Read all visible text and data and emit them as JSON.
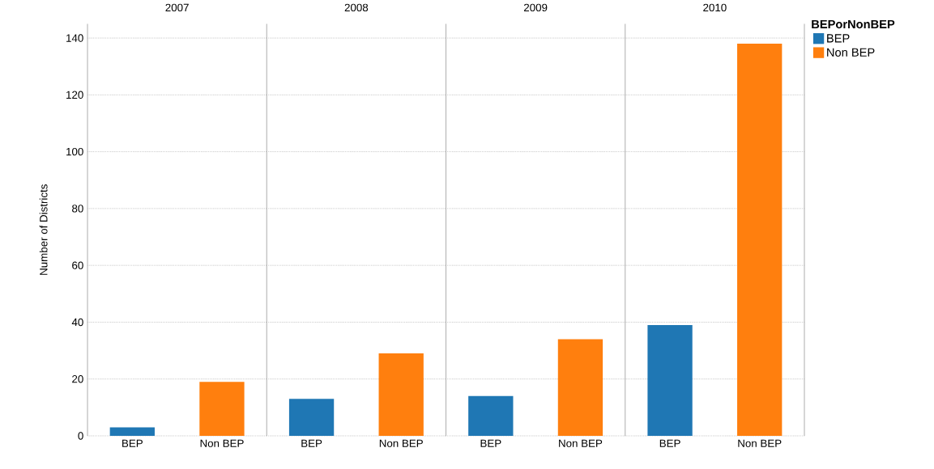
{
  "chart_data": [
    {
      "type": "bar",
      "title": "2007",
      "ylabel": "Number of Districts",
      "categories": [
        "BEP",
        "Non BEP"
      ],
      "series": [
        {
          "color": "#1f77b4",
          "values": [
            3,
            null
          ]
        },
        {
          "color": "#ff7f0e",
          "values": [
            null,
            19
          ]
        }
      ],
      "ylim": [
        0,
        145
      ],
      "yticks": [
        0,
        20,
        40,
        60,
        80,
        100,
        120,
        140
      ],
      "grid": "y"
    },
    {
      "type": "bar",
      "title": "2008",
      "categories": [
        "BEP",
        "Non BEP"
      ],
      "series": [
        {
          "color": "#1f77b4",
          "values": [
            13,
            null
          ]
        },
        {
          "color": "#ff7f0e",
          "values": [
            null,
            29
          ]
        }
      ],
      "ylim": [
        0,
        145
      ],
      "yticks": [
        0,
        20,
        40,
        60,
        80,
        100,
        120,
        140
      ],
      "grid": "y",
      "tick_labels": "x"
    },
    {
      "type": "bar",
      "title": "2009",
      "categories": [
        "BEP",
        "Non BEP"
      ],
      "series": [
        {
          "color": "#1f77b4",
          "values": [
            14,
            null
          ]
        },
        {
          "color": "#ff7f0e",
          "values": [
            null,
            34
          ]
        }
      ],
      "ylim": [
        0,
        145
      ],
      "yticks": [
        0,
        20,
        40,
        60,
        80,
        100,
        120,
        140
      ],
      "grid": "y",
      "tick_labels": "x"
    },
    {
      "type": "bar",
      "title": "2010",
      "categories": [
        "BEP",
        "Non BEP"
      ],
      "series": [
        {
          "name": "BEP",
          "color": "#1f77b4",
          "values": [
            39,
            null
          ]
        },
        {
          "name": "Non BEP",
          "color": "#ff7f0e",
          "values": [
            null,
            138
          ]
        }
      ],
      "ylim": [
        0,
        145
      ],
      "yticks": [
        0,
        20,
        40,
        60,
        80,
        100,
        120,
        140
      ],
      "grid": "y",
      "tick_labels": "x",
      "legend": "right",
      "legend_title": "BEPorNonBEP"
    }
  ]
}
